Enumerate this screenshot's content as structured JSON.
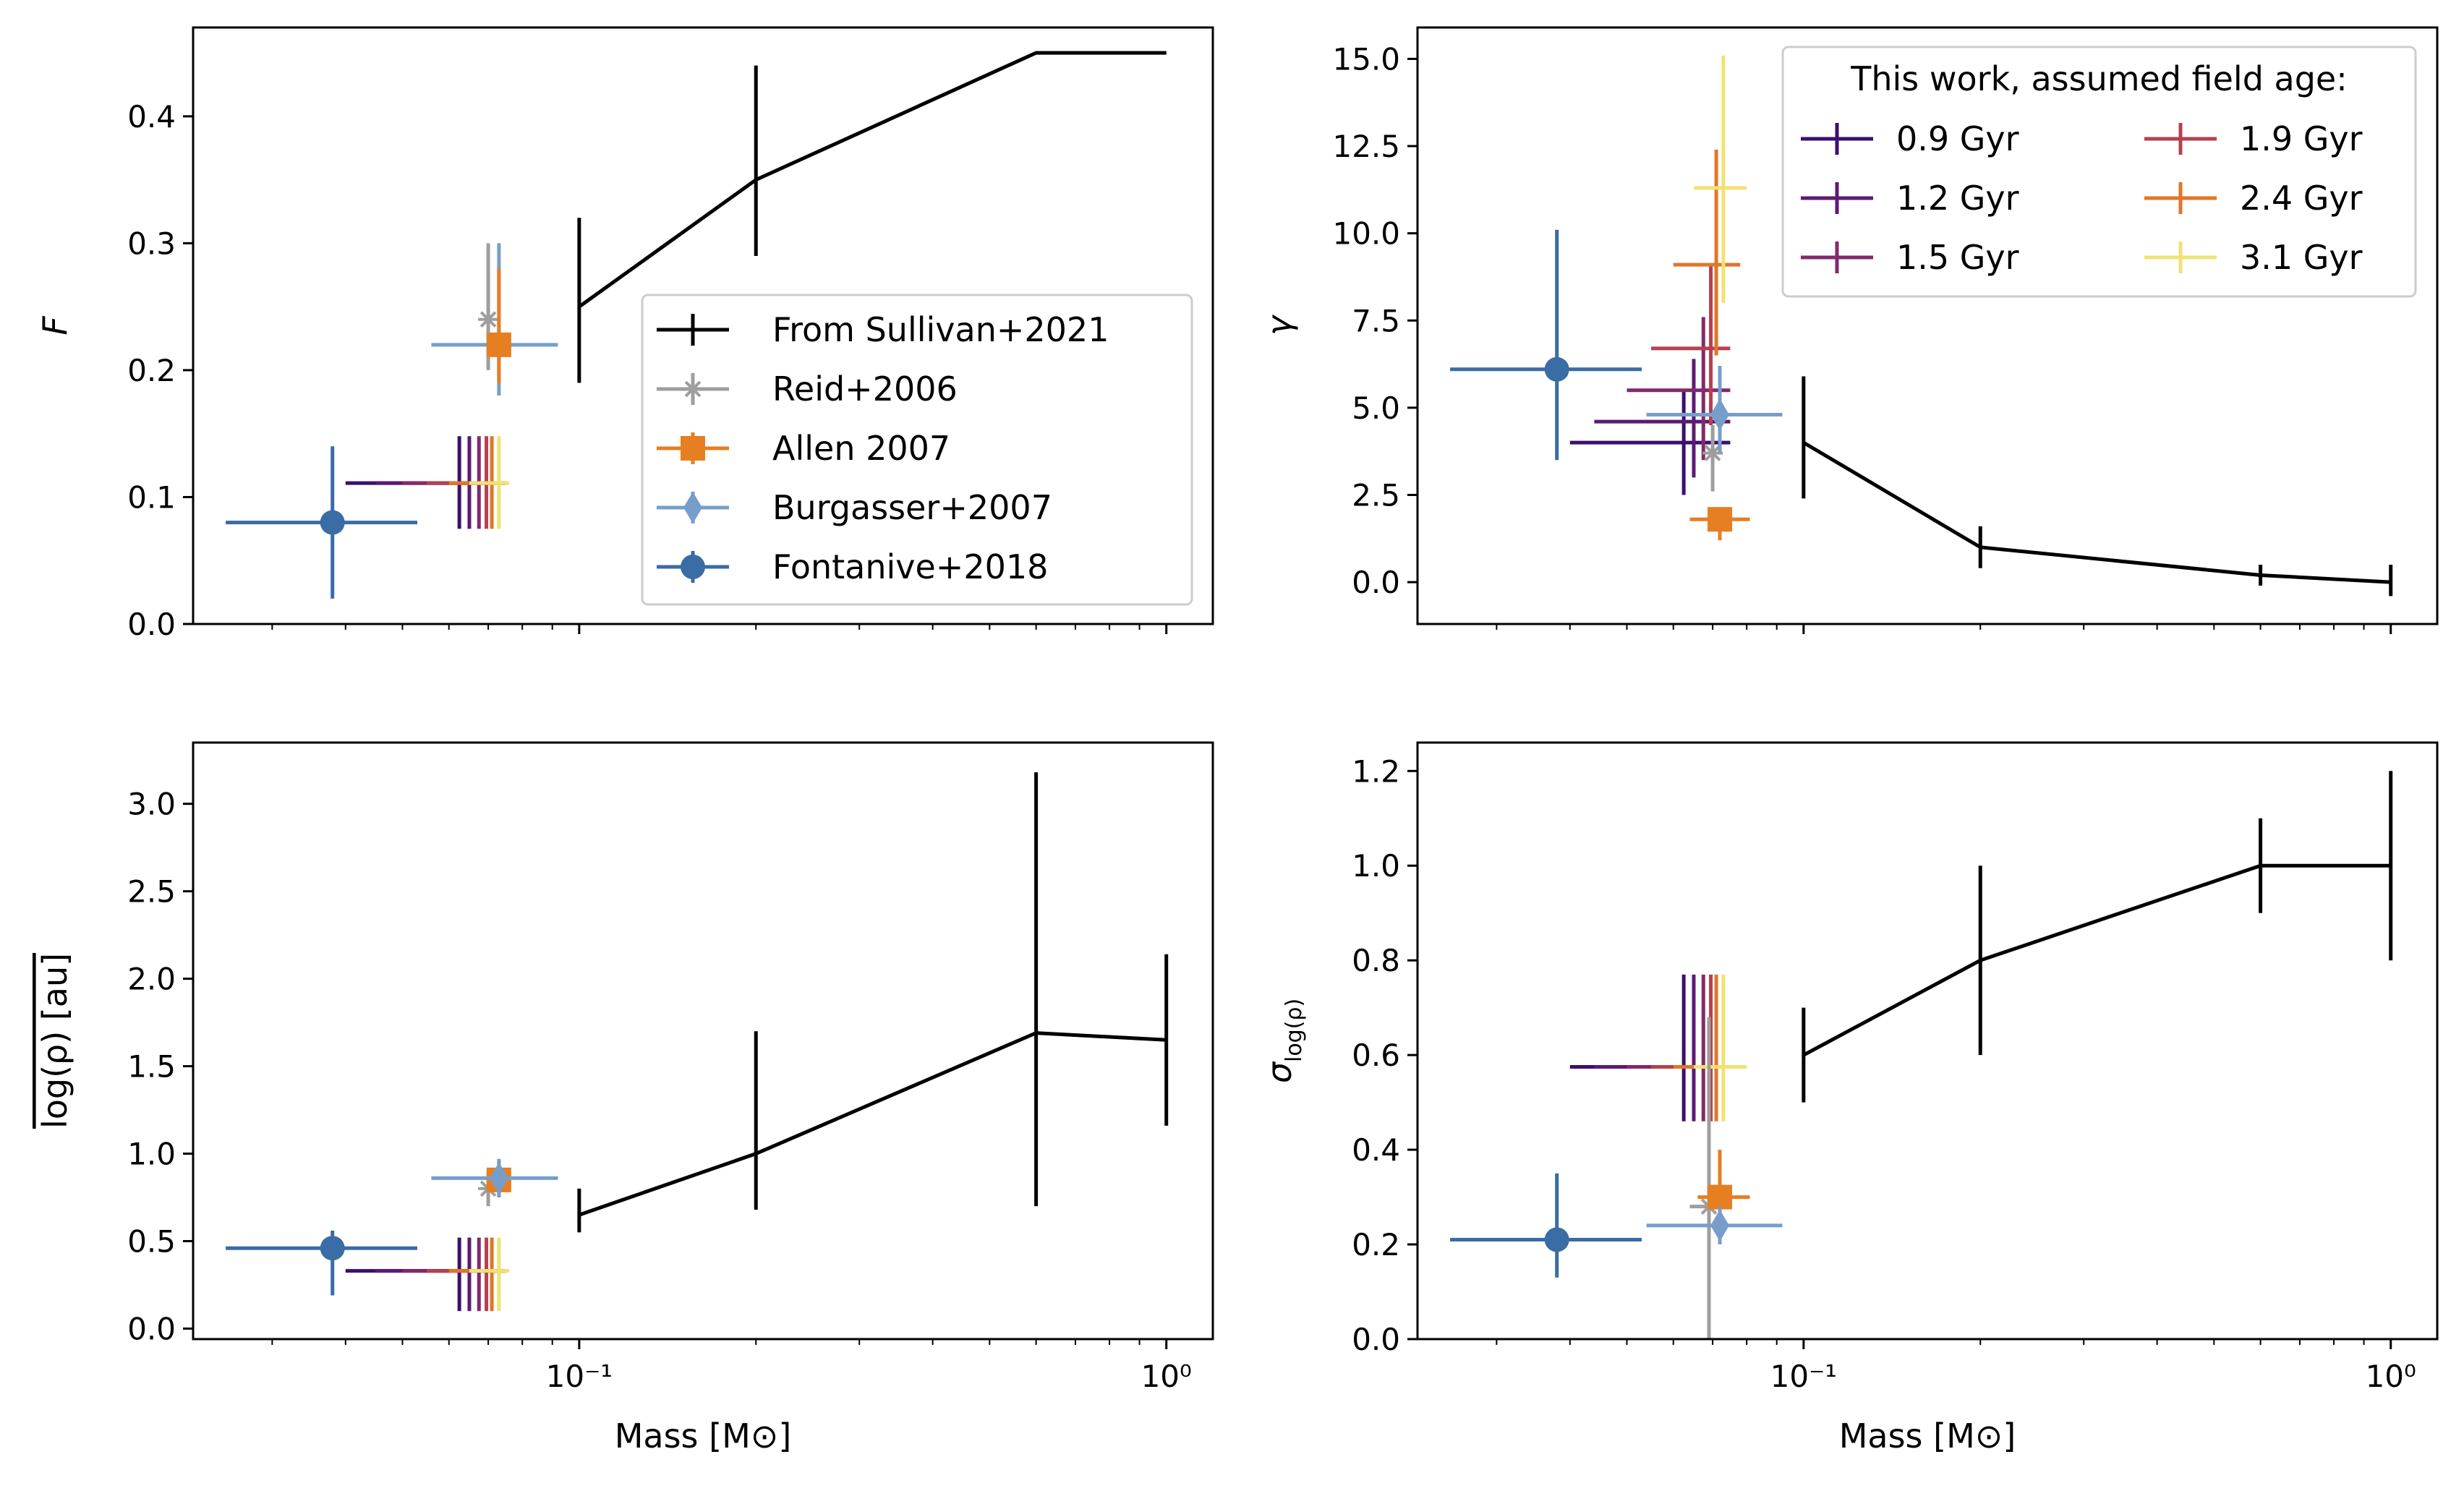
{
  "figure": {
    "background": "#ffffff"
  },
  "colors": {
    "sullivan": "#000000",
    "reid": "#9e9e9e",
    "allen": "#e67e22",
    "burgasser": "#779ecb",
    "fontanive": "#3a6ca5",
    "age_0_9": "#3b0f6f",
    "age_1_2": "#5c1a72",
    "age_1_5": "#822a6b",
    "age_1_9": "#b4414f",
    "age_2_4": "#e0762a",
    "age_3_1": "#f0e274"
  },
  "chart_data": [
    {
      "id": "F",
      "type": "scatter",
      "x_scale": "log",
      "xlim": [
        0.022,
        1.2
      ],
      "ylim": [
        0,
        0.47
      ],
      "ylabel": "F",
      "xlabel": "",
      "y_ticks": [
        "0.0",
        "0.1",
        "0.2",
        "0.3",
        "0.4"
      ],
      "x_ticks": [],
      "legend_position": "lower-right",
      "legend": [
        {
          "label": "From Sullivan+2021",
          "series": "sullivan"
        },
        {
          "label": "Reid+2006",
          "series": "reid"
        },
        {
          "label": "Allen 2007",
          "series": "allen"
        },
        {
          "label": "Burgasser+2007",
          "series": "burgasser"
        },
        {
          "label": "Fontanive+2018",
          "series": "fontanive"
        }
      ],
      "sullivan": {
        "line_x": [
          0.1,
          0.2,
          0.6,
          1.0
        ],
        "line_y": [
          0.25,
          0.35,
          0.45,
          0.45
        ],
        "error_bars": [
          {
            "x": 0.1,
            "y": 0.25,
            "ylo": 0.19,
            "yhi": 0.32
          },
          {
            "x": 0.2,
            "y": 0.35,
            "ylo": 0.29,
            "yhi": 0.44
          }
        ]
      },
      "points": [
        {
          "series": "reid",
          "x": 0.07,
          "y": 0.24,
          "xlo": 0.07,
          "xhi": 0.07,
          "ylo": 0.2,
          "yhi": 0.3
        },
        {
          "series": "burgasser",
          "x": 0.073,
          "y": 0.22,
          "xlo": 0.056,
          "xhi": 0.092,
          "ylo": 0.18,
          "yhi": 0.3
        },
        {
          "series": "allen",
          "x": 0.073,
          "y": 0.22,
          "xlo": 0.073,
          "xhi": 0.073,
          "ylo": 0.19,
          "yhi": 0.28
        },
        {
          "series": "fontanive",
          "x": 0.038,
          "y": 0.08,
          "xlo": 0.025,
          "xhi": 0.053,
          "ylo": 0.02,
          "yhi": 0.14
        }
      ],
      "ages": [
        {
          "series": "age_0_9",
          "x": 0.0625,
          "y": 0.111,
          "xlo": 0.04,
          "xhi": 0.075,
          "ylo": 0.075,
          "yhi": 0.148
        },
        {
          "series": "age_1_2",
          "x": 0.065,
          "y": 0.111,
          "xlo": 0.045,
          "xhi": 0.075,
          "ylo": 0.075,
          "yhi": 0.148
        },
        {
          "series": "age_1_5",
          "x": 0.0675,
          "y": 0.111,
          "xlo": 0.05,
          "xhi": 0.075,
          "ylo": 0.075,
          "yhi": 0.148
        },
        {
          "series": "age_1_9",
          "x": 0.0695,
          "y": 0.111,
          "xlo": 0.055,
          "xhi": 0.075,
          "ylo": 0.075,
          "yhi": 0.148
        },
        {
          "series": "age_2_4",
          "x": 0.071,
          "y": 0.111,
          "xlo": 0.06,
          "xhi": 0.075,
          "ylo": 0.075,
          "yhi": 0.148
        },
        {
          "series": "age_3_1",
          "x": 0.073,
          "y": 0.111,
          "xlo": 0.065,
          "xhi": 0.076,
          "ylo": 0.075,
          "yhi": 0.148
        }
      ]
    },
    {
      "id": "gamma",
      "type": "scatter",
      "x_scale": "log",
      "xlim": [
        0.022,
        1.2
      ],
      "ylim": [
        -1.2,
        15.9
      ],
      "ylabel": "γ",
      "xlabel": "",
      "y_ticks": [
        "0.0",
        "2.5",
        "5.0",
        "7.5",
        "10.0",
        "12.5",
        "15.0"
      ],
      "x_ticks": [],
      "legend_position": "top-right",
      "legend_title": "This work, assumed field age:",
      "legend": [
        {
          "label": "0.9 Gyr",
          "series": "age_0_9"
        },
        {
          "label": "1.2 Gyr",
          "series": "age_1_2"
        },
        {
          "label": "1.5 Gyr",
          "series": "age_1_5"
        },
        {
          "label": "1.9 Gyr",
          "series": "age_1_9"
        },
        {
          "label": "2.4 Gyr",
          "series": "age_2_4"
        },
        {
          "label": "3.1 Gyr",
          "series": "age_3_1"
        }
      ],
      "sullivan": {
        "line_x": [
          0.1,
          0.2,
          0.6,
          1.0
        ],
        "line_y": [
          4.0,
          1.0,
          0.2,
          0.0
        ],
        "error_bars": [
          {
            "x": 0.1,
            "y": 4.0,
            "ylo": 2.4,
            "yhi": 5.9
          },
          {
            "x": 0.2,
            "y": 1.0,
            "ylo": 0.4,
            "yhi": 1.6
          },
          {
            "x": 0.6,
            "y": 0.2,
            "ylo": -0.1,
            "yhi": 0.5
          },
          {
            "x": 1.0,
            "y": 0.0,
            "ylo": -0.4,
            "yhi": 0.5
          }
        ]
      },
      "points": [
        {
          "series": "reid",
          "x": 0.07,
          "y": 3.7,
          "xlo": 0.07,
          "xhi": 0.07,
          "ylo": 2.6,
          "yhi": 4.5
        },
        {
          "series": "allen",
          "x": 0.072,
          "y": 1.8,
          "xlo": 0.064,
          "xhi": 0.081,
          "ylo": 1.2,
          "yhi": 2.1
        },
        {
          "series": "burgasser",
          "x": 0.072,
          "y": 4.8,
          "xlo": 0.054,
          "xhi": 0.092,
          "ylo": 3.7,
          "yhi": 6.2
        },
        {
          "series": "fontanive",
          "x": 0.038,
          "y": 6.1,
          "xlo": 0.025,
          "xhi": 0.053,
          "ylo": 3.5,
          "yhi": 10.1
        }
      ],
      "ages": [
        {
          "series": "age_0_9",
          "x": 0.0625,
          "y": 4.0,
          "xlo": 0.04,
          "xhi": 0.075,
          "ylo": 2.5,
          "yhi": 5.5
        },
        {
          "series": "age_1_2",
          "x": 0.065,
          "y": 4.6,
          "xlo": 0.044,
          "xhi": 0.075,
          "ylo": 3.0,
          "yhi": 6.4
        },
        {
          "series": "age_1_5",
          "x": 0.0675,
          "y": 5.5,
          "xlo": 0.05,
          "xhi": 0.075,
          "ylo": 3.5,
          "yhi": 7.6
        },
        {
          "series": "age_1_9",
          "x": 0.0695,
          "y": 6.7,
          "xlo": 0.055,
          "xhi": 0.075,
          "ylo": 4.5,
          "yhi": 9.1
        },
        {
          "series": "age_2_4",
          "x": 0.071,
          "y": 9.1,
          "xlo": 0.06,
          "xhi": 0.078,
          "ylo": 6.5,
          "yhi": 12.4
        },
        {
          "series": "age_3_1",
          "x": 0.073,
          "y": 11.3,
          "xlo": 0.065,
          "xhi": 0.08,
          "ylo": 8.0,
          "yhi": 15.1
        }
      ]
    },
    {
      "id": "mean-log-rho",
      "type": "scatter",
      "x_scale": "log",
      "xlim": [
        0.022,
        1.2
      ],
      "ylim": [
        -0.06,
        3.35
      ],
      "ylabel": "log(ρ) [au]",
      "ylabel_overline": true,
      "xlabel": "Mass [M⊙]",
      "y_ticks": [
        "0.0",
        "0.5",
        "1.0",
        "1.5",
        "2.0",
        "2.5",
        "3.0"
      ],
      "x_ticks": [
        "10⁻¹",
        "10⁰"
      ],
      "sullivan": {
        "line_x": [
          0.1,
          0.2,
          0.6,
          1.0
        ],
        "line_y": [
          0.65,
          1.0,
          1.69,
          1.65
        ],
        "error_bars": [
          {
            "x": 0.1,
            "y": 0.65,
            "ylo": 0.55,
            "yhi": 0.8
          },
          {
            "x": 0.2,
            "y": 1.0,
            "ylo": 0.68,
            "yhi": 1.7
          },
          {
            "x": 0.6,
            "y": 1.69,
            "ylo": 0.7,
            "yhi": 3.18
          },
          {
            "x": 1.0,
            "y": 1.65,
            "ylo": 1.16,
            "yhi": 2.14
          }
        ]
      },
      "points": [
        {
          "series": "reid",
          "x": 0.07,
          "y": 0.8,
          "xlo": 0.07,
          "xhi": 0.07,
          "ylo": 0.7,
          "yhi": 0.9
        },
        {
          "series": "allen",
          "x": 0.073,
          "y": 0.85,
          "xlo": 0.073,
          "xhi": 0.073,
          "ylo": 0.75,
          "yhi": 0.95
        },
        {
          "series": "burgasser",
          "x": 0.073,
          "y": 0.86,
          "xlo": 0.056,
          "xhi": 0.092,
          "ylo": 0.75,
          "yhi": 0.97
        },
        {
          "series": "fontanive",
          "x": 0.038,
          "y": 0.46,
          "xlo": 0.025,
          "xhi": 0.053,
          "ylo": 0.19,
          "yhi": 0.56
        }
      ],
      "ages": [
        {
          "series": "age_0_9",
          "x": 0.0625,
          "y": 0.33,
          "xlo": 0.04,
          "xhi": 0.075,
          "ylo": 0.1,
          "yhi": 0.52
        },
        {
          "series": "age_1_2",
          "x": 0.065,
          "y": 0.33,
          "xlo": 0.045,
          "xhi": 0.075,
          "ylo": 0.1,
          "yhi": 0.52
        },
        {
          "series": "age_1_5",
          "x": 0.0675,
          "y": 0.33,
          "xlo": 0.05,
          "xhi": 0.075,
          "ylo": 0.1,
          "yhi": 0.52
        },
        {
          "series": "age_1_9",
          "x": 0.0695,
          "y": 0.33,
          "xlo": 0.055,
          "xhi": 0.075,
          "ylo": 0.1,
          "yhi": 0.52
        },
        {
          "series": "age_2_4",
          "x": 0.071,
          "y": 0.33,
          "xlo": 0.06,
          "xhi": 0.075,
          "ylo": 0.1,
          "yhi": 0.52
        },
        {
          "series": "age_3_1",
          "x": 0.073,
          "y": 0.33,
          "xlo": 0.065,
          "xhi": 0.076,
          "ylo": 0.1,
          "yhi": 0.52
        }
      ]
    },
    {
      "id": "sigma-log-rho",
      "type": "scatter",
      "x_scale": "log",
      "xlim": [
        0.022,
        1.2
      ],
      "ylim": [
        0,
        1.26
      ],
      "ylabel": "σ",
      "ylabel_sub": "log(ρ)",
      "xlabel": "Mass [M⊙]",
      "y_ticks": [
        "0.0",
        "0.2",
        "0.4",
        "0.6",
        "0.8",
        "1.0",
        "1.2"
      ],
      "x_ticks": [
        "10⁻¹",
        "10⁰"
      ],
      "sullivan": {
        "line_x": [
          0.1,
          0.2,
          0.6,
          1.0
        ],
        "line_y": [
          0.6,
          0.8,
          1.0,
          1.0
        ],
        "error_bars": [
          {
            "x": 0.1,
            "y": 0.6,
            "ylo": 0.5,
            "yhi": 0.7
          },
          {
            "x": 0.2,
            "y": 0.8,
            "ylo": 0.6,
            "yhi": 1.0
          },
          {
            "x": 0.6,
            "y": 1.0,
            "ylo": 0.9,
            "yhi": 1.1
          },
          {
            "x": 1.0,
            "y": 1.0,
            "ylo": 0.8,
            "yhi": 1.2
          }
        ]
      },
      "points": [
        {
          "series": "reid",
          "x": 0.069,
          "y": 0.28,
          "xlo": 0.064,
          "xhi": 0.069,
          "ylo": 0.0,
          "yhi": 0.68
        },
        {
          "series": "allen",
          "x": 0.072,
          "y": 0.3,
          "xlo": 0.066,
          "xhi": 0.081,
          "ylo": 0.2,
          "yhi": 0.4
        },
        {
          "series": "burgasser",
          "x": 0.072,
          "y": 0.24,
          "xlo": 0.054,
          "xhi": 0.092,
          "ylo": 0.2,
          "yhi": 0.28
        },
        {
          "series": "fontanive",
          "x": 0.038,
          "y": 0.21,
          "xlo": 0.025,
          "xhi": 0.053,
          "ylo": 0.13,
          "yhi": 0.35
        }
      ],
      "ages": [
        {
          "series": "age_0_9",
          "x": 0.0625,
          "y": 0.575,
          "xlo": 0.04,
          "xhi": 0.075,
          "ylo": 0.46,
          "yhi": 0.77
        },
        {
          "series": "age_1_2",
          "x": 0.065,
          "y": 0.575,
          "xlo": 0.044,
          "xhi": 0.075,
          "ylo": 0.46,
          "yhi": 0.77
        },
        {
          "series": "age_1_5",
          "x": 0.0675,
          "y": 0.575,
          "xlo": 0.05,
          "xhi": 0.075,
          "ylo": 0.46,
          "yhi": 0.77
        },
        {
          "series": "age_1_9",
          "x": 0.0695,
          "y": 0.575,
          "xlo": 0.055,
          "xhi": 0.075,
          "ylo": 0.46,
          "yhi": 0.77
        },
        {
          "series": "age_2_4",
          "x": 0.071,
          "y": 0.575,
          "xlo": 0.06,
          "xhi": 0.075,
          "ylo": 0.46,
          "yhi": 0.77
        },
        {
          "series": "age_3_1",
          "x": 0.073,
          "y": 0.575,
          "xlo": 0.065,
          "xhi": 0.08,
          "ylo": 0.46,
          "yhi": 0.77
        }
      ]
    }
  ]
}
